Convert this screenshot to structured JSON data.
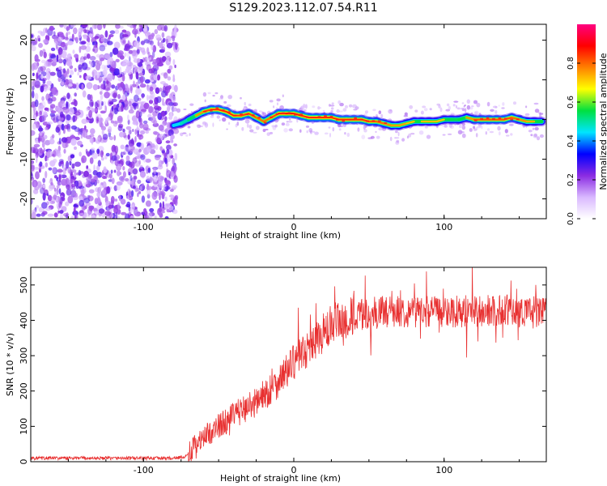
{
  "title": "S129.2023.112.07.54.R11",
  "chart_data": [
    {
      "type": "heatmap",
      "xlabel": "Height of straight line (km)",
      "ylabel": "Frequency (Hz)",
      "xlim": [
        -175,
        168
      ],
      "ylim": [
        -25,
        24
      ],
      "x_ticks": [
        -100,
        0,
        100
      ],
      "y_ticks": [
        -20,
        -10,
        0,
        10,
        20
      ],
      "colorbar": {
        "label": "Normalized spectral amplitude",
        "range": [
          0,
          1
        ],
        "ticks": [
          0.0,
          0.2,
          0.4,
          0.6,
          0.8
        ],
        "colors": [
          "#ffffff",
          "#d9b8ff",
          "#8a2be2",
          "#0000ff",
          "#00e5ff",
          "#00e040",
          "#ffff00",
          "#ff8000",
          "#ff0000",
          "#ff0080"
        ]
      },
      "noise_region_x": [
        -175,
        -78
      ],
      "ridge": {
        "x": [
          -80,
          -75,
          -70,
          -65,
          -60,
          -55,
          -50,
          -45,
          -40,
          -35,
          -30,
          -25,
          -20,
          -15,
          -10,
          -5,
          0,
          5,
          10,
          15,
          20,
          25,
          30,
          35,
          40,
          45,
          50,
          55,
          60,
          65,
          70,
          75,
          80,
          85,
          90,
          95,
          100,
          105,
          110,
          115,
          120,
          125,
          130,
          135,
          140,
          145,
          150,
          155,
          160,
          165
        ],
        "y": [
          -1.5,
          -1.0,
          0,
          1.0,
          2.0,
          2.5,
          2.5,
          2.0,
          1.0,
          1.0,
          1.5,
          0.5,
          -0.5,
          0.5,
          1.5,
          1.5,
          1.5,
          1.0,
          0.5,
          0.5,
          0.5,
          0.5,
          0,
          0,
          0,
          0,
          -0.5,
          -0.5,
          -1.0,
          -1.5,
          -1.5,
          -1.0,
          -0.5,
          -0.5,
          -0.5,
          -0.5,
          0,
          0,
          0,
          0.5,
          0,
          0,
          0,
          0,
          0,
          0.5,
          0,
          -0.5,
          -0.5,
          -0.5
        ],
        "strength": [
          0.55,
          0.6,
          0.65,
          0.72,
          0.8,
          0.85,
          0.85,
          0.85,
          0.85,
          0.82,
          0.85,
          0.8,
          0.78,
          0.8,
          0.85,
          0.88,
          0.88,
          0.85,
          0.85,
          0.85,
          0.85,
          0.85,
          0.85,
          0.85,
          0.85,
          0.85,
          0.82,
          0.8,
          0.8,
          0.75,
          0.75,
          0.75,
          0.7,
          0.72,
          0.72,
          0.72,
          0.72,
          0.7,
          0.7,
          0.72,
          0.8,
          0.82,
          0.82,
          0.82,
          0.82,
          0.82,
          0.78,
          0.75,
          0.72,
          0.7
        ]
      }
    },
    {
      "type": "line",
      "xlabel": "Height of straight line (km)",
      "ylabel": "SNR (10 * v/v)",
      "xlim": [
        -175,
        168
      ],
      "ylim": [
        0,
        550
      ],
      "x_ticks": [
        -100,
        0,
        100
      ],
      "y_ticks": [
        0,
        100,
        200,
        300,
        400,
        500
      ],
      "color": "#e83030",
      "trend": {
        "x": [
          -175,
          -140,
          -100,
          -80,
          -72,
          -65,
          -55,
          -45,
          -35,
          -25,
          -15,
          -5,
          0,
          5,
          10,
          15,
          20,
          30,
          40,
          50,
          60,
          80,
          100,
          120,
          140,
          150,
          160,
          168
        ],
        "y": [
          10,
          10,
          10,
          10,
          14,
          50,
          85,
          115,
          145,
          170,
          205,
          255,
          280,
          305,
          325,
          345,
          365,
          390,
          410,
          420,
          425,
          425,
          425,
          425,
          430,
          425,
          425,
          425
        ]
      }
    }
  ]
}
